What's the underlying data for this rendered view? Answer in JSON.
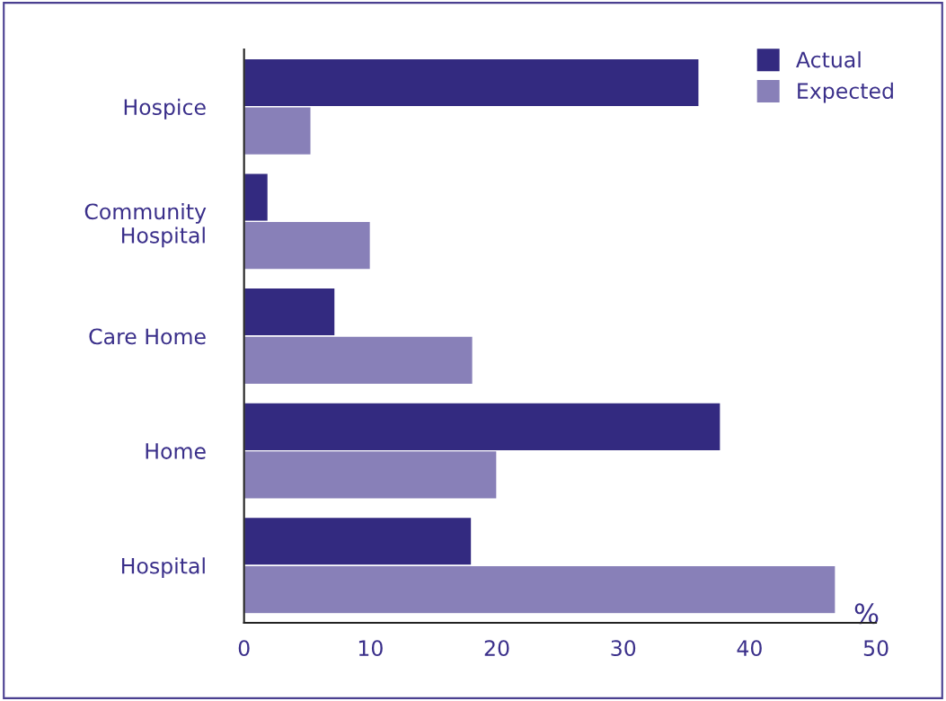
{
  "chart_data": {
    "type": "bar",
    "orientation": "horizontal",
    "categories": [
      "Hospice",
      "Community\nHospital",
      "Care Home",
      "Home",
      "Hospital"
    ],
    "series": [
      {
        "name": "Actual",
        "color": "#332a80",
        "values": [
          36.0,
          1.9,
          7.2,
          37.7,
          18.0
        ]
      },
      {
        "name": "Expected",
        "color": "#8880b8",
        "values": [
          5.3,
          10.0,
          18.1,
          20.0,
          46.8
        ]
      }
    ],
    "xlabel": "%",
    "xlim": [
      0,
      50
    ],
    "xticks": [
      0,
      10,
      20,
      30,
      40,
      50
    ],
    "grid": false,
    "legend": "top right"
  }
}
